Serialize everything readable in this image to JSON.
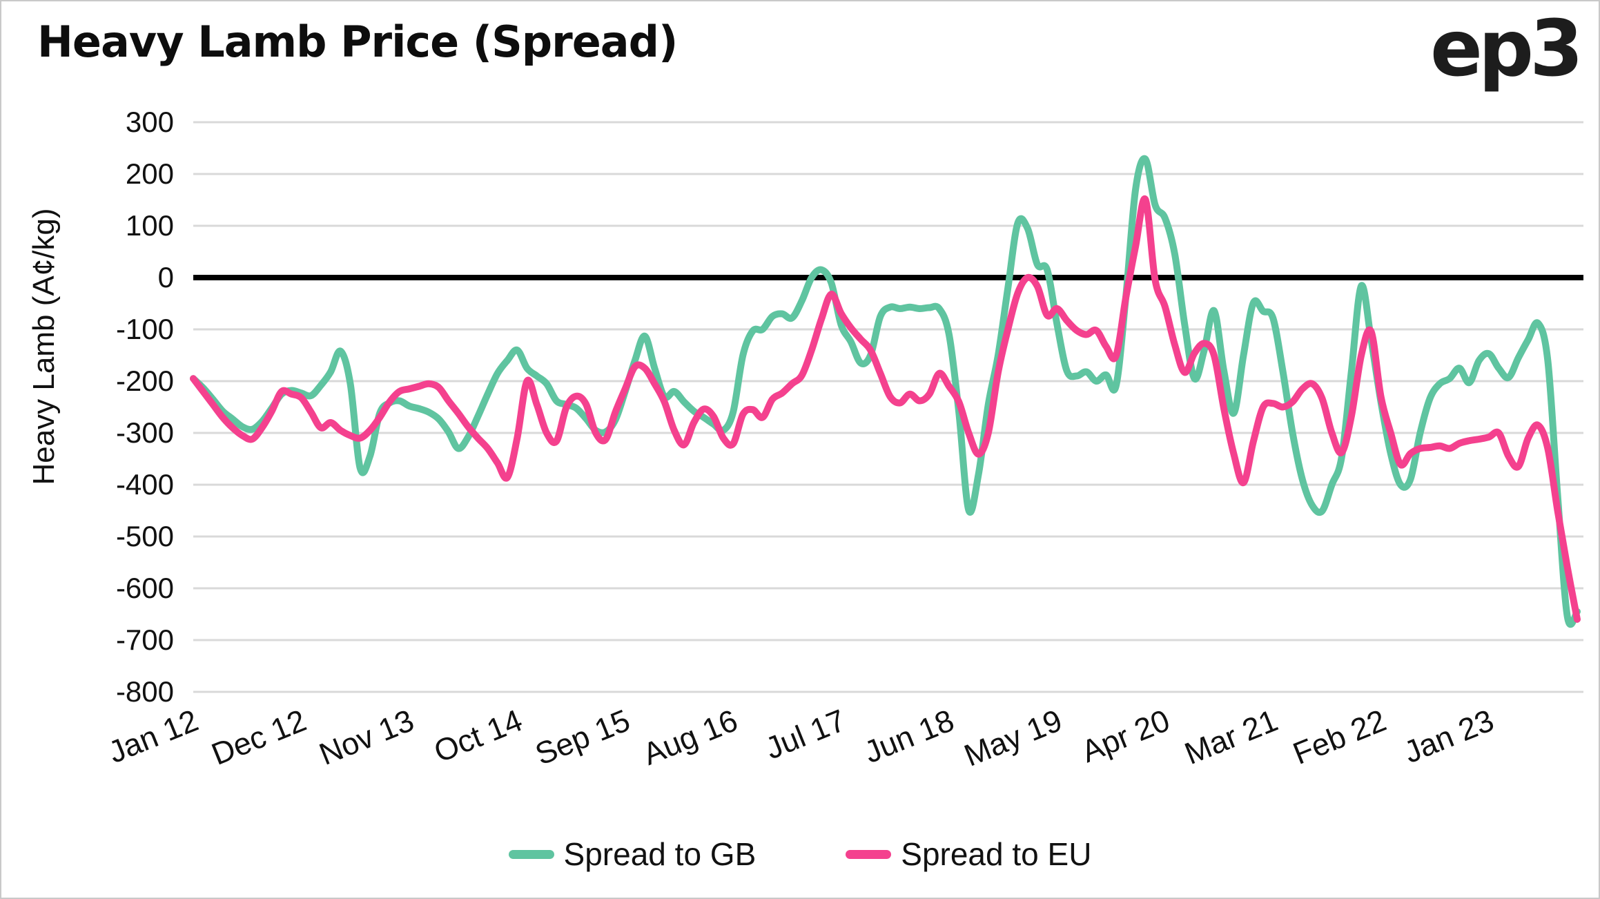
{
  "header": {
    "title": "Heavy Lamb Price (Spread)",
    "logo": "ep3"
  },
  "chart_data": {
    "type": "line",
    "title": "Heavy Lamb Price (Spread)",
    "xlabel": "",
    "ylabel": "Heavy Lamb (A¢/kg)",
    "ylim": [
      -800,
      300
    ],
    "yticks": [
      300,
      200,
      100,
      0,
      -100,
      -200,
      -300,
      -400,
      -500,
      -600,
      -700,
      -800
    ],
    "grid": "horizontal",
    "gridline_color": "#d9d9d9",
    "zero_line_color": "#000000",
    "text_color": "#111111",
    "x_frequency": "monthly",
    "x_start": "Jan 2012",
    "x_end": "Oct 2023",
    "x_tick_labels": [
      "Jan 12",
      "Dec 12",
      "Nov 13",
      "Oct 14",
      "Sep 15",
      "Aug 16",
      "Jul 17",
      "Jun 18",
      "May 19",
      "Apr 20",
      "Mar 21",
      "Feb 22",
      "Jan 23"
    ],
    "x_tick_month_indexes": [
      0,
      11,
      22,
      33,
      44,
      55,
      66,
      77,
      88,
      99,
      110,
      121,
      132
    ],
    "legend_position": "bottom",
    "series": [
      {
        "name": "Spread to GB",
        "color": "#5fc4a0",
        "values": [
          -195,
          -213,
          -235,
          -258,
          -273,
          -288,
          -293,
          -278,
          -252,
          -225,
          -218,
          -223,
          -228,
          -208,
          -182,
          -142,
          -205,
          -368,
          -345,
          -262,
          -242,
          -238,
          -248,
          -253,
          -260,
          -273,
          -298,
          -330,
          -308,
          -268,
          -225,
          -185,
          -160,
          -140,
          -175,
          -190,
          -205,
          -238,
          -245,
          -252,
          -272,
          -295,
          -298,
          -275,
          -220,
          -160,
          -113,
          -175,
          -230,
          -220,
          -240,
          -258,
          -270,
          -283,
          -295,
          -260,
          -150,
          -103,
          -100,
          -75,
          -70,
          -78,
          -45,
          0,
          15,
          -10,
          -91,
          -124,
          -165,
          -150,
          -75,
          -57,
          -60,
          -57,
          -60,
          -58,
          -60,
          -110,
          -260,
          -449,
          -380,
          -245,
          -150,
          -20,
          105,
          95,
          25,
          15,
          -90,
          -180,
          -190,
          -182,
          -200,
          -188,
          -210,
          -40,
          170,
          229,
          140,
          115,
          45,
          -90,
          -195,
          -140,
          -64,
          -180,
          -262,
          -150,
          -49,
          -65,
          -78,
          -180,
          -300,
          -390,
          -440,
          -451,
          -400,
          -347,
          -180,
          -16,
          -120,
          -240,
          -340,
          -400,
          -390,
          -300,
          -233,
          -205,
          -195,
          -175,
          -203,
          -160,
          -147,
          -175,
          -193,
          -155,
          -120,
          -88,
          -160,
          -420,
          -655,
          -645
        ]
      },
      {
        "name": "Spread to EU",
        "color": "#f4418e",
        "values": [
          -195,
          -220,
          -245,
          -270,
          -290,
          -305,
          -312,
          -290,
          -258,
          -220,
          -225,
          -232,
          -260,
          -290,
          -280,
          -295,
          -305,
          -310,
          -295,
          -270,
          -240,
          -220,
          -215,
          -210,
          -205,
          -212,
          -238,
          -262,
          -288,
          -310,
          -330,
          -358,
          -386,
          -310,
          -200,
          -245,
          -300,
          -316,
          -251,
          -229,
          -244,
          -300,
          -313,
          -260,
          -215,
          -172,
          -175,
          -205,
          -240,
          -295,
          -323,
          -280,
          -254,
          -268,
          -310,
          -321,
          -264,
          -255,
          -270,
          -235,
          -223,
          -205,
          -189,
          -140,
          -80,
          -32,
          -69,
          -97,
          -119,
          -140,
          -185,
          -230,
          -242,
          -225,
          -238,
          -225,
          -185,
          -210,
          -240,
          -300,
          -341,
          -300,
          -183,
          -100,
          -30,
          0,
          -17,
          -73,
          -60,
          -83,
          -102,
          -110,
          -102,
          -133,
          -152,
          -40,
          60,
          151,
          -5,
          -56,
          -130,
          -183,
          -146,
          -127,
          -150,
          -253,
          -340,
          -396,
          -317,
          -250,
          -243,
          -250,
          -240,
          -215,
          -205,
          -233,
          -300,
          -338,
          -267,
          -150,
          -104,
          -230,
          -300,
          -361,
          -340,
          -330,
          -328,
          -325,
          -330,
          -320,
          -315,
          -312,
          -308,
          -300,
          -345,
          -365,
          -310,
          -285,
          -330,
          -450,
          -560,
          -660
        ]
      }
    ]
  }
}
